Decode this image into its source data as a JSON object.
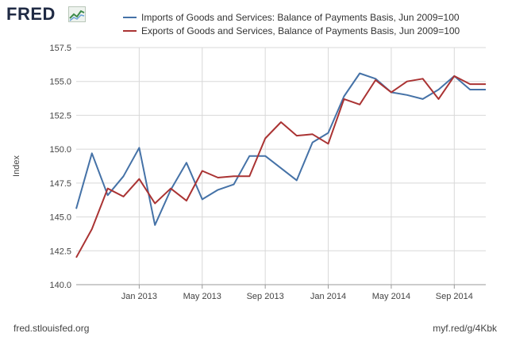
{
  "header": {
    "logo_text": "FRED",
    "logo_mark": "graph-mark-icon"
  },
  "footer": {
    "source": "fred.stlouisfed.org",
    "short_link": "myf.red/g/4Kbk"
  },
  "chart_data": {
    "type": "line",
    "title": "",
    "xlabel": "",
    "ylabel": "Index",
    "ylim": [
      140.0,
      157.5
    ],
    "y_ticks": [
      "140.0",
      "142.5",
      "145.0",
      "147.5",
      "150.0",
      "152.5",
      "155.0",
      "157.5"
    ],
    "x_ticks": [
      "Jan 2013",
      "May 2013",
      "Sep 2013",
      "Jan 2014",
      "May 2014",
      "Sep 2014"
    ],
    "x": [
      "Sep 2012",
      "Oct 2012",
      "Nov 2012",
      "Dec 2012",
      "Jan 2013",
      "Feb 2013",
      "Mar 2013",
      "Apr 2013",
      "May 2013",
      "Jun 2013",
      "Jul 2013",
      "Aug 2013",
      "Sep 2013",
      "Oct 2013",
      "Nov 2013",
      "Dec 2013",
      "Jan 2014",
      "Feb 2014",
      "Mar 2014",
      "Apr 2014",
      "May 2014",
      "Jun 2014",
      "Jul 2014",
      "Aug 2014",
      "Sep 2014",
      "Oct 2014",
      "Nov 2014"
    ],
    "grid": true,
    "legend_position": "top",
    "series": [
      {
        "name": "Imports of Goods and Services: Balance of Payments Basis, Jun 2009=100",
        "color": "#4572a7",
        "values": [
          145.6,
          149.7,
          146.6,
          148.0,
          150.1,
          144.4,
          147.0,
          149.0,
          146.3,
          147.0,
          147.4,
          149.5,
          149.5,
          148.6,
          147.7,
          150.5,
          151.2,
          153.9,
          155.6,
          155.2,
          154.2,
          154.0,
          153.7,
          154.4,
          155.4,
          154.4,
          154.4
        ]
      },
      {
        "name": "Exports of Goods and Services, Balance of Payments Basis, Jun 2009=100",
        "color": "#aa3333",
        "values": [
          142.0,
          144.1,
          147.1,
          146.5,
          147.8,
          146.0,
          147.1,
          146.2,
          148.4,
          147.9,
          148.0,
          148.0,
          150.8,
          152.0,
          151.0,
          151.1,
          150.4,
          153.7,
          153.3,
          155.1,
          154.2,
          155.0,
          155.2,
          153.7,
          155.4,
          154.8,
          154.8
        ]
      }
    ]
  }
}
